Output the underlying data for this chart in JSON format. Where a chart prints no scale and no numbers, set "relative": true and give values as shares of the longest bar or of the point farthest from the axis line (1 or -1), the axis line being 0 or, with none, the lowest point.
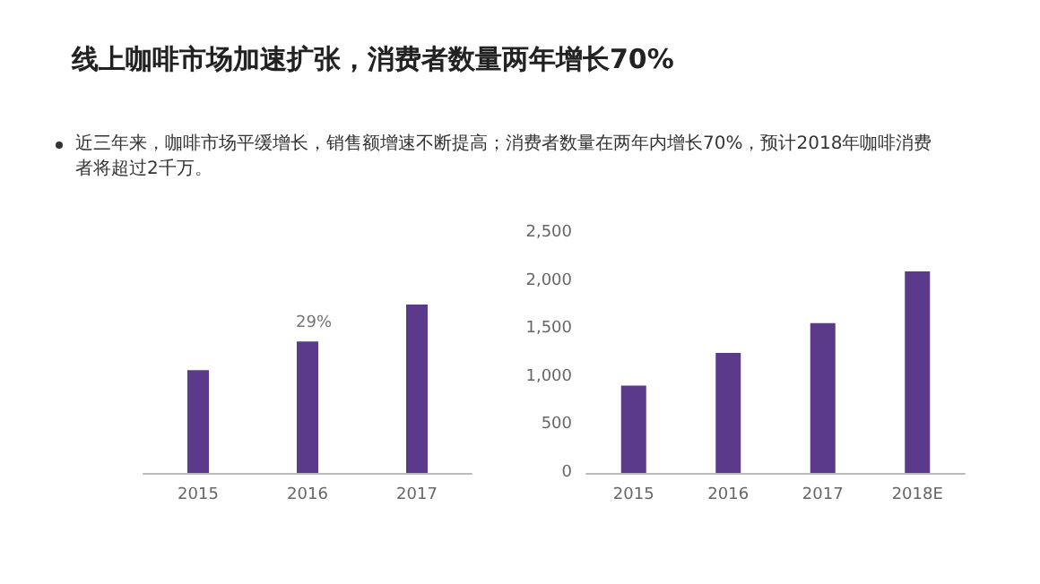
{
  "chart_data": [
    {
      "type": "bar",
      "title": "线上咖啡市场加速扩张，消费者数量两年增长70%",
      "subtitle": "近三年来，咖啡市场平缓增长，销售额增速不断提高；消费者数量在两年内增长70%，预计2018年咖啡消费者将超过2千万。",
      "categories": [
        "2015",
        "2016",
        "2017"
      ],
      "values": [
        0.61,
        0.78,
        1
      ],
      "color": "#5b3a8c",
      "relative": true,
      "annotations": [
        "29%"
      ],
      "grid": false
    },
    {
      "type": "bar",
      "categories": [
        "2015",
        "2016",
        "2017",
        "2018E"
      ],
      "values": [
        910,
        1250,
        1560,
        2100
      ],
      "color": "#5b3a8c",
      "ylim": [
        0,
        2500
      ],
      "yticks": [
        0,
        500,
        {
          "value": 1000,
          "label": "1,000"
        },
        {
          "value": 1500,
          "label": "1,500"
        },
        {
          "value": 2000,
          "label": "2,000"
        },
        {
          "value": 2500,
          "label": "2,500"
        }
      ],
      "grid": false
    }
  ]
}
